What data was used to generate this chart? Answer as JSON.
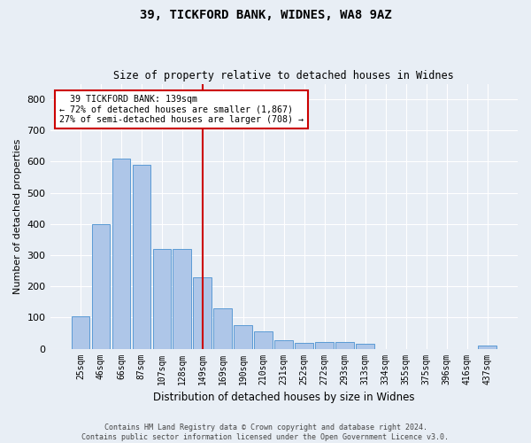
{
  "title1": "39, TICKFORD BANK, WIDNES, WA8 9AZ",
  "title2": "Size of property relative to detached houses in Widnes",
  "xlabel": "Distribution of detached houses by size in Widnes",
  "ylabel": "Number of detached properties",
  "categories": [
    "25sqm",
    "46sqm",
    "66sqm",
    "87sqm",
    "107sqm",
    "128sqm",
    "149sqm",
    "169sqm",
    "190sqm",
    "210sqm",
    "231sqm",
    "252sqm",
    "272sqm",
    "293sqm",
    "313sqm",
    "334sqm",
    "355sqm",
    "375sqm",
    "396sqm",
    "416sqm",
    "437sqm"
  ],
  "values": [
    103,
    400,
    610,
    590,
    320,
    320,
    230,
    130,
    75,
    55,
    27,
    20,
    22,
    22,
    15,
    0,
    0,
    0,
    0,
    0,
    10
  ],
  "bar_color": "#aec6e8",
  "bar_edge_color": "#5b9bd5",
  "vline_x": 6.0,
  "vline_color": "#cc0000",
  "annotation_text": "  39 TICKFORD BANK: 139sqm\n← 72% of detached houses are smaller (1,867)\n27% of semi-detached houses are larger (708) →",
  "annotation_box_color": "#ffffff",
  "annotation_box_edge_color": "#cc0000",
  "footer_text": "Contains HM Land Registry data © Crown copyright and database right 2024.\nContains public sector information licensed under the Open Government Licence v3.0.",
  "background_color": "#e8eef5",
  "plot_background_color": "#e8eef5",
  "ylim": [
    0,
    850
  ],
  "yticks": [
    0,
    100,
    200,
    300,
    400,
    500,
    600,
    700,
    800
  ]
}
